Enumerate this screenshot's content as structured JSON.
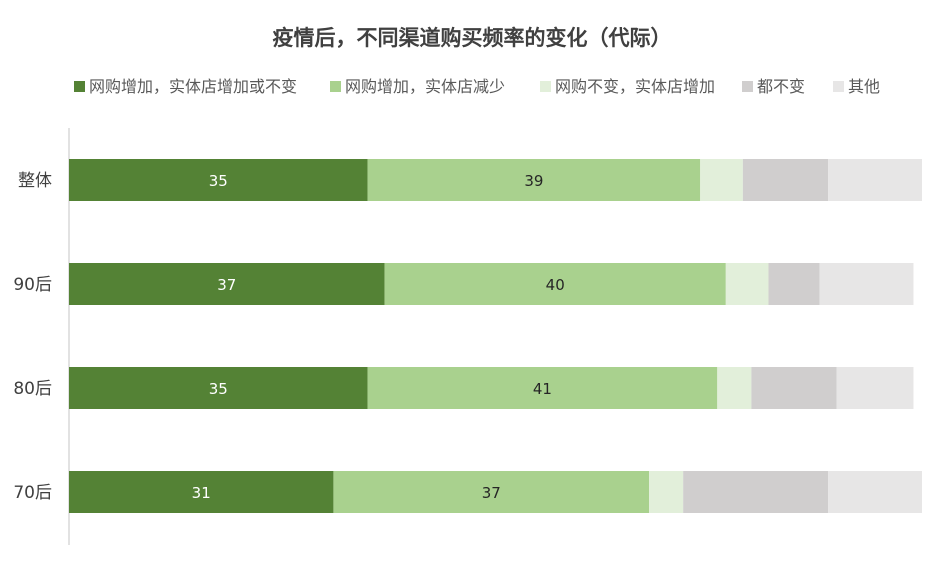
{
  "chart_data": {
    "type": "bar",
    "orientation": "horizontal",
    "stacked": true,
    "title": "疫情后，不同渠道购买频率的变化（代际）",
    "categories": [
      "整体",
      "90后",
      "80后",
      "70后"
    ],
    "series": [
      {
        "name": "网购增加，实体店增加或不变",
        "color": "#548235",
        "values": [
          35,
          37,
          35,
          31
        ],
        "labels": [
          "35",
          "37",
          "35",
          "31"
        ]
      },
      {
        "name": "网购增加，实体店减少",
        "color": "#a9d18e",
        "values": [
          39,
          40,
          41,
          37
        ],
        "labels": [
          "39",
          "40",
          "41",
          "37"
        ]
      },
      {
        "name": "网购不变，实体店增加",
        "color": "#e2efda",
        "values": [
          5,
          5,
          4,
          4
        ]
      },
      {
        "name": "都不变",
        "color": "#d0cece",
        "values": [
          10,
          6,
          10,
          17
        ]
      },
      {
        "name": "其他",
        "color": "#e7e6e6",
        "values": [
          11,
          11,
          9,
          11
        ]
      }
    ],
    "xlim": [
      0,
      100
    ],
    "grid": false,
    "legend_position": "top"
  }
}
